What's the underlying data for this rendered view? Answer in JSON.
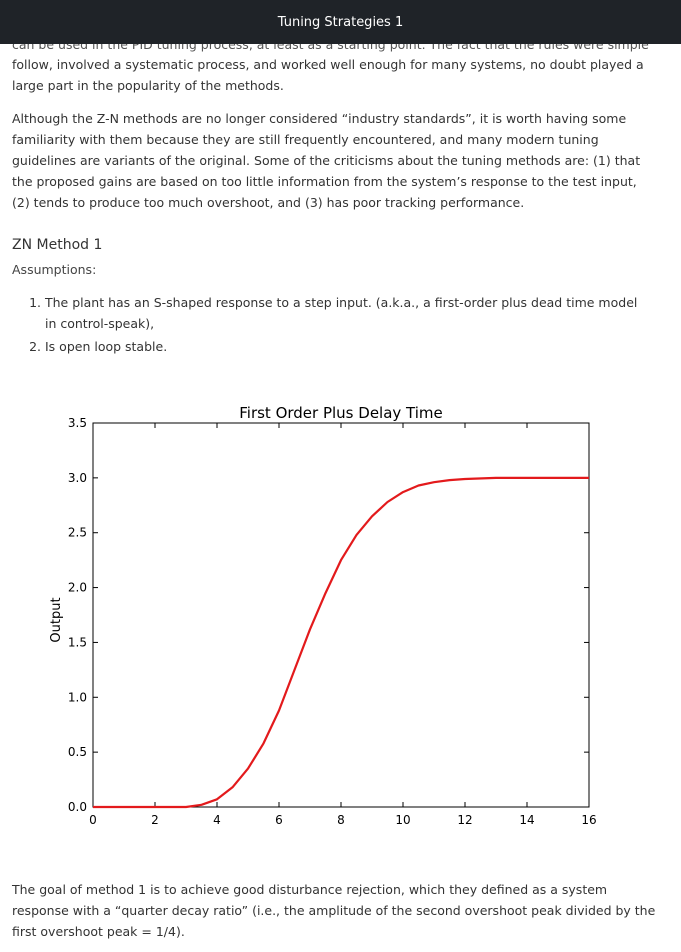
{
  "header": {
    "title": "Tuning Strategies 1"
  },
  "article": {
    "cut_line": "can be used in the PID tuning process, at least as a starting point. The fact that the rules were simple to",
    "para1": "follow, involved a systematic process, and worked well enough for many systems, no doubt played a large part in the popularity of the methods.",
    "para2": "Although the Z-N methods are no longer considered “industry standards”, it is worth having some familiarity with them because they are still frequently encountered, and many modern tuning guidelines are variants of the original. Some of the criticisms about the tuning methods are: (1) that the proposed gains are based on too little information from the system’s response to the test input, (2) tends to produce too much overshoot, and (3) has poor tracking performance.",
    "section_heading": "ZN Method 1",
    "assumptions_label": "Assumptions:",
    "assumptions": [
      "The plant has an S-shaped response to a step input. (a.k.a., a first-order plus dead time model in control-speak),",
      "Is open loop stable."
    ],
    "para3": "The goal of method 1 is to achieve good disturbance rejection, which they defined as a system response with a “quarter decay ratio” (i.e., the amplitude of the second overshoot peak divided by the first overshoot peak = 1/4)."
  },
  "chart_data": {
    "type": "line",
    "title": "First Order Plus Delay Time",
    "xlabel": "",
    "ylabel": "Output",
    "xlim": [
      0,
      16
    ],
    "ylim": [
      0,
      3.5
    ],
    "xticks": [
      0,
      2,
      4,
      6,
      8,
      10,
      12,
      14,
      16
    ],
    "yticks": [
      0.0,
      0.5,
      1.0,
      1.5,
      2.0,
      2.5,
      3.0,
      3.5
    ],
    "ytick_labels": [
      "0.0",
      "0.5",
      "1.0",
      "1.5",
      "2.0",
      "2.5",
      "3.0",
      "3.5"
    ],
    "grid": false,
    "series": [
      {
        "color": "#e31a1c",
        "x": [
          0,
          1,
          2,
          3,
          3.5,
          4,
          4.5,
          5,
          5.5,
          6,
          6.5,
          7,
          7.5,
          8,
          8.5,
          9,
          9.5,
          10,
          10.5,
          11,
          11.5,
          12,
          13,
          14,
          15,
          16
        ],
        "y": [
          0,
          0,
          0,
          0,
          0.02,
          0.07,
          0.18,
          0.35,
          0.58,
          0.88,
          1.25,
          1.62,
          1.95,
          2.25,
          2.48,
          2.65,
          2.78,
          2.87,
          2.93,
          2.96,
          2.98,
          2.99,
          3.0,
          3.0,
          3.0,
          3.0
        ]
      }
    ]
  }
}
